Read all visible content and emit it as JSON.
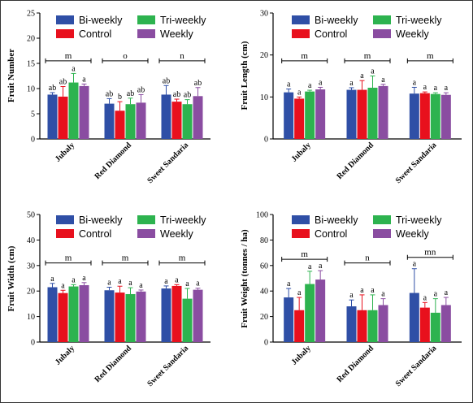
{
  "series_colors": {
    "Bi-weekly": "#2f4fa6",
    "Control": "#e8101d",
    "Tri-weekly": "#2db34f",
    "Weekly": "#8a4da1"
  },
  "chart_data": [
    {
      "type": "bar",
      "ylabel": "Fruit Number",
      "ylim": [
        0,
        25
      ],
      "yticks": [
        0,
        5,
        10,
        15,
        20,
        25
      ],
      "categories": [
        "Jubaly",
        "Red Diamond",
        "Sweet Sandaria"
      ],
      "legend": [
        "Bi-weekly",
        "Tri-weekly",
        "Control",
        "Weekly"
      ],
      "series": [
        {
          "name": "Bi-weekly",
          "values": [
            8.8,
            7.0,
            8.8
          ],
          "errors": [
            0.4,
            1.0,
            1.8
          ],
          "letters": [
            "ab",
            "ab",
            "ab"
          ]
        },
        {
          "name": "Control",
          "values": [
            8.4,
            5.6,
            7.4
          ],
          "errors": [
            2.0,
            1.8,
            0.5
          ],
          "letters": [
            "ab",
            "b",
            "ab"
          ]
        },
        {
          "name": "Tri-weekly",
          "values": [
            11.2,
            6.9,
            6.9
          ],
          "errors": [
            1.8,
            1.2,
            0.9
          ],
          "letters": [
            "a",
            "ab",
            "ab"
          ]
        },
        {
          "name": "Weekly",
          "values": [
            10.5,
            7.2,
            8.5
          ],
          "errors": [
            0.4,
            1.6,
            1.7
          ],
          "letters": [
            "a",
            "ab",
            "ab"
          ]
        }
      ],
      "group_letters": [
        "m",
        "o",
        "n"
      ]
    },
    {
      "type": "bar",
      "ylabel": "Fruit Length (cm)",
      "ylim": [
        0,
        30
      ],
      "yticks": [
        0,
        10,
        20,
        30
      ],
      "categories": [
        "Jubaly",
        "Red Diamond",
        "Sweet Sandaria"
      ],
      "legend": [
        "Bi-weekly",
        "Tri-weekly",
        "Control",
        "Weekly"
      ],
      "series": [
        {
          "name": "Bi-weekly",
          "values": [
            11.1,
            11.7,
            10.8
          ],
          "errors": [
            0.8,
            0.5,
            1.5
          ],
          "letters": [
            "a",
            "a",
            "a"
          ]
        },
        {
          "name": "Control",
          "values": [
            9.6,
            11.7,
            10.9
          ],
          "errors": [
            0.4,
            2.2,
            0.3
          ],
          "letters": [
            "a",
            "a",
            "a"
          ]
        },
        {
          "name": "Tri-weekly",
          "values": [
            11.3,
            12.2,
            10.7
          ],
          "errors": [
            0.3,
            2.8,
            0.3
          ],
          "letters": [
            "a",
            "a",
            "a"
          ]
        },
        {
          "name": "Weekly",
          "values": [
            11.8,
            12.6,
            10.5
          ],
          "errors": [
            0.5,
            0.4,
            0.5
          ],
          "letters": [
            "a",
            "a",
            "a"
          ]
        }
      ],
      "group_letters": [
        "m",
        "m",
        "m"
      ]
    },
    {
      "type": "bar",
      "ylabel": "Fruit Width (cm)",
      "ylim": [
        0,
        50
      ],
      "yticks": [
        0,
        10,
        20,
        30,
        40,
        50
      ],
      "categories": [
        "Jubaly",
        "Red Diamond",
        "Sweet Sandaria"
      ],
      "legend": [
        "Bi-weekly",
        "Tri-weekly",
        "Control",
        "Weekly"
      ],
      "series": [
        {
          "name": "Bi-weekly",
          "values": [
            21.5,
            20.3,
            21.0
          ],
          "errors": [
            1.5,
            1.2,
            1.0
          ],
          "letters": [
            "a",
            "a",
            "a"
          ]
        },
        {
          "name": "Control",
          "values": [
            19.2,
            19.4,
            22.0
          ],
          "errors": [
            1.1,
            2.5,
            0.5
          ],
          "letters": [
            "a",
            "a",
            "a"
          ]
        },
        {
          "name": "Tri-weekly",
          "values": [
            21.8,
            18.8,
            17.0
          ],
          "errors": [
            0.7,
            2.5,
            4.0
          ],
          "letters": [
            "a",
            "a",
            "a"
          ]
        },
        {
          "name": "Weekly",
          "values": [
            22.3,
            19.8,
            20.5
          ],
          "errors": [
            1.0,
            0.6,
            0.6
          ],
          "letters": [
            "a",
            "a",
            "a"
          ]
        }
      ],
      "group_letters": [
        "m",
        "m",
        "m"
      ]
    },
    {
      "type": "bar",
      "ylabel": "Fruit Weight (tonnes / ha)",
      "ylim": [
        0,
        100
      ],
      "yticks": [
        0,
        20,
        40,
        60,
        80,
        100
      ],
      "categories": [
        "Jubaly",
        "Red Diamond",
        "Sweet Sandaria"
      ],
      "legend": [
        "Bi-weekly",
        "Tri-weekly",
        "Control",
        "Weekly"
      ],
      "series": [
        {
          "name": "Bi-weekly",
          "values": [
            35,
            28,
            38.5
          ],
          "errors": [
            7,
            5,
            19
          ],
          "letters": [
            "a",
            "a",
            "a"
          ]
        },
        {
          "name": "Control",
          "values": [
            25,
            25,
            27
          ],
          "errors": [
            10,
            12,
            4
          ],
          "letters": [
            "a",
            "a",
            "a"
          ]
        },
        {
          "name": "Tri-weekly",
          "values": [
            45.5,
            25,
            23
          ],
          "errors": [
            10,
            12,
            11
          ],
          "letters": [
            "a",
            "a",
            "a"
          ]
        },
        {
          "name": "Weekly",
          "values": [
            49,
            29,
            29
          ],
          "errors": [
            7,
            5,
            6
          ],
          "letters": [
            "a",
            "a",
            "a"
          ]
        }
      ],
      "group_letters": [
        "m",
        "n",
        "mn"
      ]
    }
  ]
}
